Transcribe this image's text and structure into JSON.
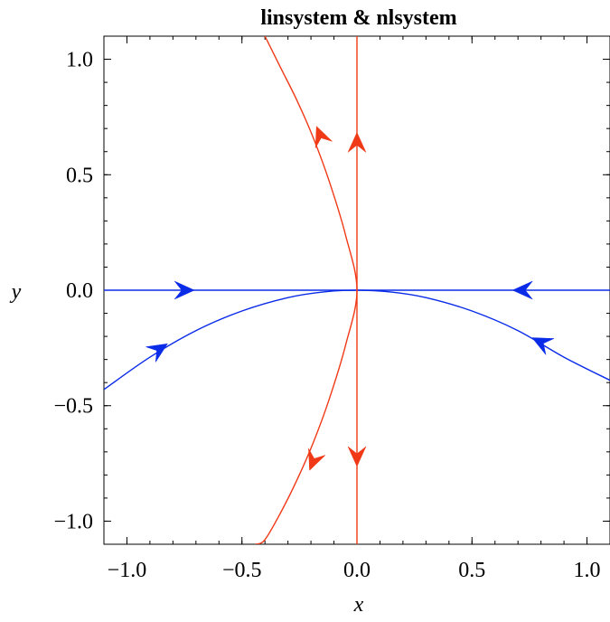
{
  "chart_data": {
    "type": "line",
    "title": "linsystem & nlsystem",
    "xlabel": "x",
    "ylabel": "y",
    "xlim": [
      -1.1,
      1.1
    ],
    "ylim": [
      -1.1,
      1.1
    ],
    "xticks": [
      -1.0,
      -0.5,
      0.0,
      0.5,
      1.0
    ],
    "yticks": [
      -1.0,
      -0.5,
      0.0,
      0.5,
      1.0
    ],
    "xtick_labels": [
      "−1.0",
      "−0.5",
      "0.0",
      "0.5",
      "1.0"
    ],
    "ytick_labels": [
      "−1.0",
      "−0.5",
      "0.0",
      "0.5",
      "1.0"
    ],
    "grid": false,
    "series": [
      {
        "color": "#0a2be8",
        "x": [
          -1.1,
          -0.9,
          -0.7,
          -0.5,
          -0.3,
          -0.15,
          0.0,
          0.15,
          0.3,
          0.5,
          0.7,
          0.9,
          1.1
        ],
        "y": [
          -0.43,
          -0.29,
          -0.175,
          -0.09,
          -0.032,
          -0.008,
          0.0,
          -0.008,
          -0.032,
          -0.09,
          -0.175,
          -0.29,
          -0.39
        ],
        "arrows": [
          {
            "x": -0.86,
            "y": -0.255,
            "direction": "toward-origin"
          },
          {
            "x": 0.8,
            "y": -0.225,
            "direction": "toward-origin"
          }
        ]
      },
      {
        "color": "#0a2be8",
        "x": [
          -1.1,
          1.1
        ],
        "y": [
          0.0,
          0.0
        ],
        "arrows": [
          {
            "x": -0.75,
            "y": 0.0,
            "direction": "toward-origin"
          },
          {
            "x": 0.72,
            "y": 0.0,
            "direction": "toward-origin"
          }
        ]
      },
      {
        "color": "#f03a17",
        "x": [
          0.0,
          0.0
        ],
        "y": [
          -1.1,
          1.1
        ],
        "arrows": [
          {
            "x": 0.0,
            "y": 0.64,
            "direction": "away-from-origin"
          },
          {
            "x": 0.0,
            "y": -0.72,
            "direction": "away-from-origin"
          }
        ]
      },
      {
        "color": "#f03a17",
        "x": [
          -0.4,
          -0.33,
          -0.26,
          -0.19,
          -0.12,
          -0.05,
          0.0,
          -0.05,
          -0.12,
          -0.19,
          -0.26,
          -0.33,
          -0.4,
          -0.44
        ],
        "y": [
          1.1,
          0.96,
          0.82,
          0.66,
          0.47,
          0.24,
          0.0,
          -0.24,
          -0.47,
          -0.66,
          -0.82,
          -0.96,
          -1.08,
          -1.1
        ],
        "arrows": [
          {
            "x": -0.16,
            "y": 0.67,
            "direction": "away-from-origin"
          },
          {
            "x": -0.19,
            "y": -0.74,
            "direction": "away-from-origin"
          }
        ]
      }
    ]
  }
}
